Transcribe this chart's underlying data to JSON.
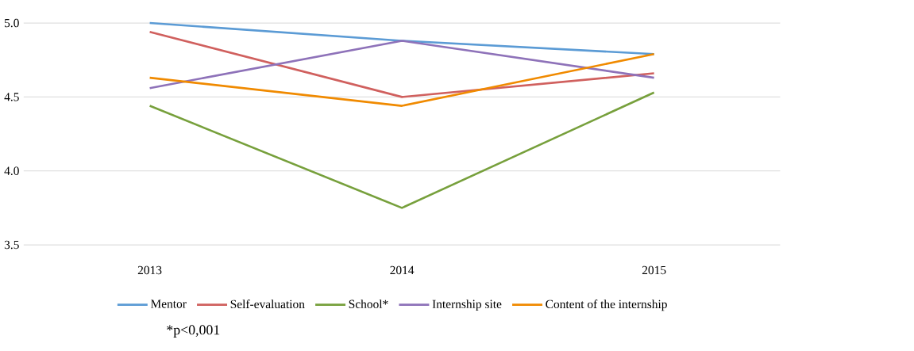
{
  "chart_data": {
    "type": "line",
    "categories": [
      "2013",
      "2014",
      "2015"
    ],
    "series": [
      {
        "name": "Mentor",
        "color": "#5b9bd5",
        "values": [
          5.0,
          4.88,
          4.79
        ]
      },
      {
        "name": "Self-evaluation",
        "color": "#d0605e",
        "values": [
          4.94,
          4.5,
          4.66
        ]
      },
      {
        "name": "School*",
        "color": "#77a03c",
        "values": [
          4.44,
          3.75,
          4.53
        ]
      },
      {
        "name": "Internship site",
        "color": "#8e72b9",
        "values": [
          4.56,
          4.88,
          4.63
        ]
      },
      {
        "name": "Content of the internship",
        "color": "#f08a00",
        "values": [
          4.63,
          4.44,
          4.79
        ]
      }
    ],
    "ylim": [
      3.5,
      5.0
    ],
    "yticks": [
      {
        "value": 3.5,
        "label": "3.5"
      },
      {
        "value": 4.0,
        "label": "4.0"
      },
      {
        "value": 4.5,
        "label": "4.5"
      },
      {
        "value": 5.0,
        "label": "5.0"
      }
    ],
    "grid": "y",
    "legend": "bottom",
    "marker": "none",
    "line_style": "solid",
    "annotations": [
      "*p<0,001"
    ]
  }
}
